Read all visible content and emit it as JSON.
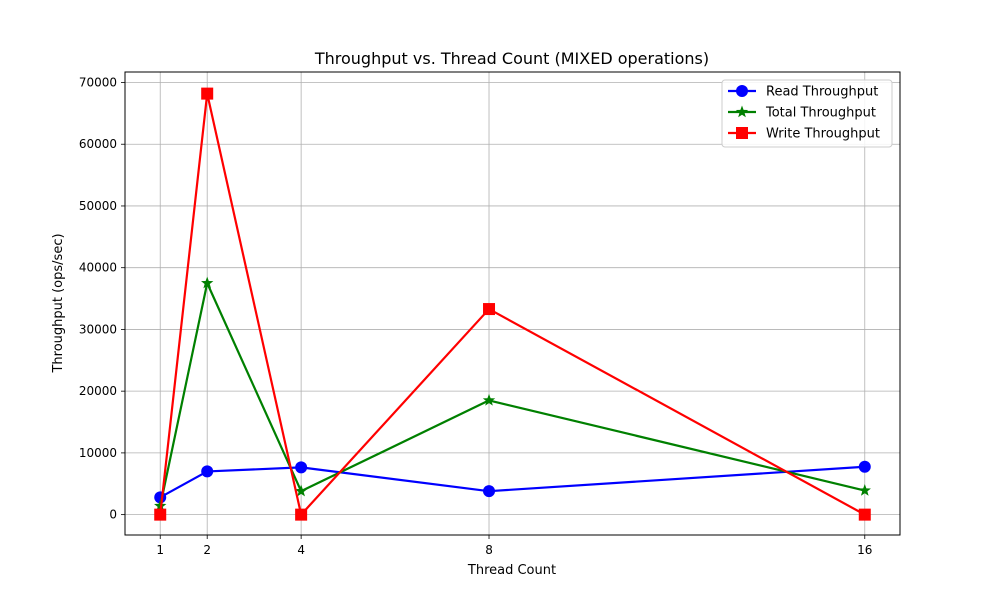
{
  "chart_data": {
    "type": "line",
    "title": "Throughput vs. Thread Count (MIXED operations)",
    "xlabel": "Thread Count",
    "ylabel": "Throughput (ops/sec)",
    "x": [
      1,
      2,
      4,
      8,
      16
    ],
    "x_ticks": [
      1,
      2,
      4,
      8,
      16
    ],
    "y_ticks": [
      0,
      10000,
      20000,
      30000,
      40000,
      50000,
      60000,
      70000
    ],
    "xlim": [
      0.25,
      16.75
    ],
    "ylim": [
      -3300,
      71700
    ],
    "grid": true,
    "legend_position": "top-right",
    "series": [
      {
        "name": "Read Throughput",
        "color": "#0000ff",
        "marker": "circle",
        "values": [
          2800,
          7000,
          7650,
          3800,
          7750
        ]
      },
      {
        "name": "Total Throughput",
        "color": "#008000",
        "marker": "star",
        "values": [
          1400,
          37500,
          3800,
          18500,
          3900
        ]
      },
      {
        "name": "Write Throughput",
        "color": "#ff0000",
        "marker": "square",
        "values": [
          0,
          68200,
          0,
          33300,
          0
        ]
      }
    ]
  }
}
